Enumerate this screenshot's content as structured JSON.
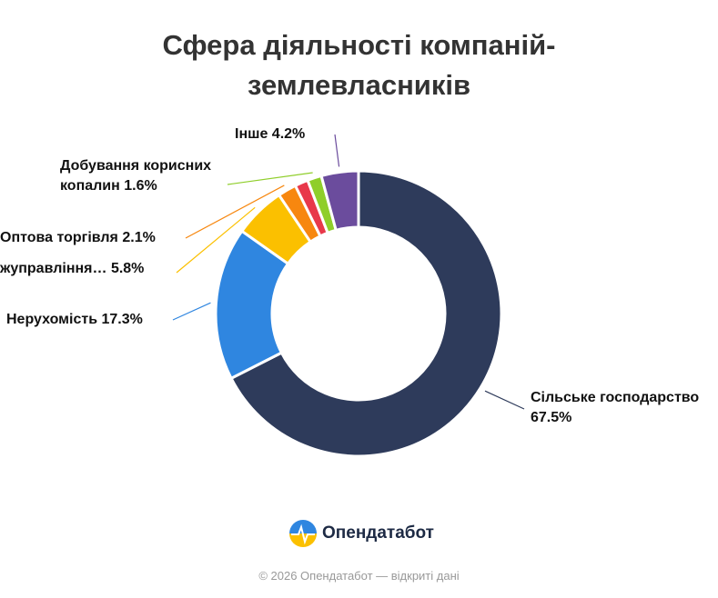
{
  "chart_data": {
    "type": "donut",
    "title": "Сфера діяльності компаній-землевласників",
    "categories": [
      "Сільське господарство",
      "Нерухомість",
      "жуправління…",
      "Оптова торгівля",
      null,
      "Добування корисних копалин",
      "Інше"
    ],
    "values": [
      67.5,
      17.3,
      5.8,
      2.1,
      1.5,
      1.6,
      4.2
    ],
    "value_labels": [
      "67.5%",
      "17.3%",
      "5.8%",
      "2.1%",
      null,
      "1.6%",
      "4.2%"
    ],
    "colors": [
      "#2e3b5b",
      "#2f86e0",
      "#fbc000",
      "#f7870f",
      "#e8384a",
      "#8fce2a",
      "#6b4c9d"
    ]
  },
  "footer": {
    "brand": "Опендатабот",
    "copyright": "© 2026 Опендатабот — відкриті дані"
  }
}
